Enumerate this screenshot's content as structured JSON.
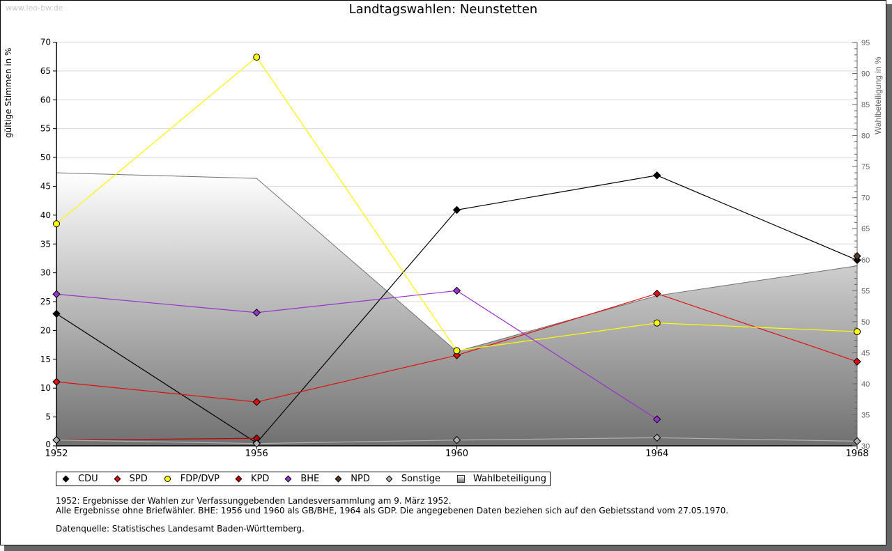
{
  "watermark": "www.leo-bw.de",
  "chart_data": {
    "type": "line",
    "title": "Landtagswahlen: Neunstetten",
    "xlabel": "",
    "ylabel": "gültige Stimmen in %",
    "ylabel_right": "Wahlbeteiligung in %",
    "x": [
      1952,
      1956,
      1960,
      1964,
      1968
    ],
    "x_tick_labels": [
      "1952",
      "1956",
      "1960",
      "1964",
      "1968"
    ],
    "ylim": [
      0,
      70
    ],
    "y_ticks": [
      0,
      5,
      10,
      15,
      20,
      25,
      30,
      35,
      40,
      45,
      50,
      55,
      60,
      65,
      70
    ],
    "ylim_right": [
      30,
      95
    ],
    "y_ticks_right": [
      30,
      35,
      40,
      45,
      50,
      55,
      60,
      65,
      70,
      75,
      80,
      85,
      90,
      95
    ],
    "grid": true,
    "legend_position": "bottom-left",
    "series": [
      {
        "name": "CDU",
        "color": "#000000",
        "marker": "diamond",
        "values": [
          22.9,
          0.5,
          40.9,
          46.9,
          32.2
        ]
      },
      {
        "name": "SPD",
        "color": "#e01010",
        "marker": "diamond",
        "values": [
          11.1,
          7.6,
          15.7,
          26.4,
          14.6
        ]
      },
      {
        "name": "FDP/DVP",
        "color": "#ffff00",
        "marker": "circle",
        "values": [
          38.5,
          67.4,
          16.5,
          21.3,
          19.8
        ]
      },
      {
        "name": "KPD",
        "color": "#c00000",
        "marker": "diamond",
        "values": [
          1.0,
          1.3,
          null,
          null,
          null
        ]
      },
      {
        "name": "BHE",
        "color": "#9933cc",
        "marker": "diamond",
        "values": [
          26.3,
          23.1,
          26.9,
          4.6,
          null
        ]
      },
      {
        "name": "NPD",
        "color": "#5c3a20",
        "marker": "diamond",
        "values": [
          null,
          null,
          null,
          null,
          32.9
        ]
      },
      {
        "name": "Sonstige",
        "color": "#b0b0b0",
        "marker": "diamond",
        "values": [
          1.0,
          0.4,
          1.0,
          1.4,
          0.8
        ]
      }
    ],
    "area_series": {
      "name": "Wahlbeteiligung",
      "axis": "right",
      "values": [
        74.0,
        73.1,
        45.2,
        54.2,
        59.0
      ]
    }
  },
  "legend": {
    "items": [
      {
        "label": "CDU",
        "color": "#000000",
        "shape": "diamond"
      },
      {
        "label": "SPD",
        "color": "#e01010",
        "shape": "diamond"
      },
      {
        "label": "FDP/DVP",
        "color": "#ffff00",
        "shape": "circle"
      },
      {
        "label": "KPD",
        "color": "#c00000",
        "shape": "diamond"
      },
      {
        "label": "BHE",
        "color": "#9933cc",
        "shape": "diamond"
      },
      {
        "label": "NPD",
        "color": "#5c3a20",
        "shape": "diamond"
      },
      {
        "label": "Sonstige",
        "color": "#b0b0b0",
        "shape": "diamond"
      },
      {
        "label": "Wahlbeteiligung",
        "color": "#aaaaaa",
        "shape": "square"
      }
    ]
  },
  "notes": {
    "line1": "1952: Ergebnisse der Wahlen zur Verfassunggebenden Landesversammlung am 9. März 1952.",
    "line2": "Alle Ergebnisse ohne Briefwähler. BHE: 1956 und 1960 als GB/BHE, 1964 als GDP. Die angegebenen Daten beziehen sich auf den Gebietsstand vom 27.05.1970.",
    "source": "Datenquelle: Statistisches Landesamt Baden-Württemberg."
  }
}
